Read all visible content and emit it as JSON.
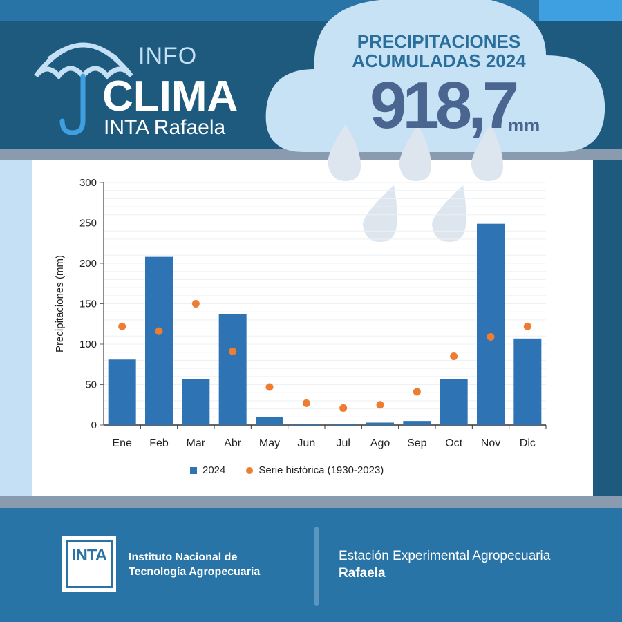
{
  "header": {
    "info": "INFO",
    "clima": "CLIMA",
    "place": "INTA Rafaela",
    "title_line1": "PRECIPITACIONES",
    "title_line2": "ACUMULADAS 2024",
    "total": "918,7",
    "unit": "mm"
  },
  "chart_data": {
    "type": "bar",
    "ylabel": "Precipitaciones (mm)",
    "xlabel": "",
    "ylim": [
      0,
      300
    ],
    "yticks": [
      0,
      50,
      100,
      150,
      200,
      250,
      300
    ],
    "categories": [
      "Ene",
      "Feb",
      "Mar",
      "Abr",
      "May",
      "Jun",
      "Jul",
      "Ago",
      "Sep",
      "Oct",
      "Nov",
      "Dic"
    ],
    "series": [
      {
        "name": "2024",
        "type": "bar",
        "color": "#2e74b5",
        "values": [
          81,
          208,
          57,
          137,
          10,
          1.5,
          1.5,
          3,
          5,
          57,
          249,
          107
        ]
      },
      {
        "name": "Serie histórica (1930-2023)",
        "type": "scatter",
        "color": "#ed7d31",
        "values": [
          122,
          116,
          150,
          91,
          47,
          27,
          21,
          25,
          41,
          85,
          109,
          122
        ]
      }
    ],
    "grid": true,
    "legend": "bottom"
  },
  "footer": {
    "logo": "INTA",
    "inst_line1": "Instituto Nacional de",
    "inst_line2": "Tecnología Agropecuaria",
    "station": "Estación Experimental Agropecuaria",
    "station_name": "Rafaela"
  }
}
